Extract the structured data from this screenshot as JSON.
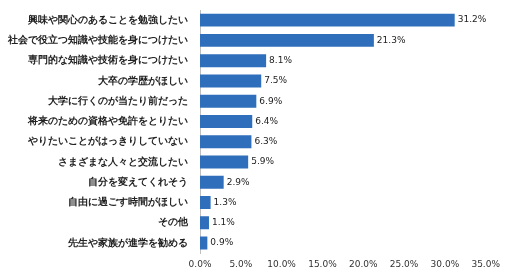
{
  "chart_data": {
    "type": "bar",
    "orientation": "horizontal",
    "categories": [
      "興味や関心のあることを勉強したい",
      "社会で役立つ知識や技能を身につけたい",
      "専門的な知識や技術を身につけたい",
      "大卒の学歴がほしい",
      "大学に行くのが当たり前だった",
      "将来のための資格や免許をとりたい",
      "やりたいことがはっきりしていない",
      "さまざまな人々と交流したい",
      "自分を変えてくれそう",
      "自由に過ごす時間がほしい",
      "その他",
      "先生や家族が進学を勧める"
    ],
    "values": [
      31.2,
      21.3,
      8.1,
      7.5,
      6.9,
      6.4,
      6.3,
      5.9,
      2.9,
      1.3,
      1.1,
      0.9
    ],
    "value_labels": [
      "31.2%",
      "21.3%",
      "8.1%",
      "7.5%",
      "6.9%",
      "6.4%",
      "6.3%",
      "5.9%",
      "2.9%",
      "1.3%",
      "1.1%",
      "0.9%"
    ],
    "data_labels": true,
    "color": "#2f6eba",
    "xlim": [
      0,
      35
    ],
    "xticks": [
      {
        "value": 0,
        "label": "0.0%"
      },
      {
        "value": 5,
        "label": "5.0%"
      },
      {
        "value": 10,
        "label": "10.0%"
      },
      {
        "value": 15,
        "label": "15.0%"
      },
      {
        "value": 20,
        "label": "20.0%"
      },
      {
        "value": 25,
        "label": "25.0%"
      },
      {
        "value": 30,
        "label": "30.0%"
      },
      {
        "value": 35,
        "label": "35.0%"
      }
    ],
    "grid": false
  }
}
